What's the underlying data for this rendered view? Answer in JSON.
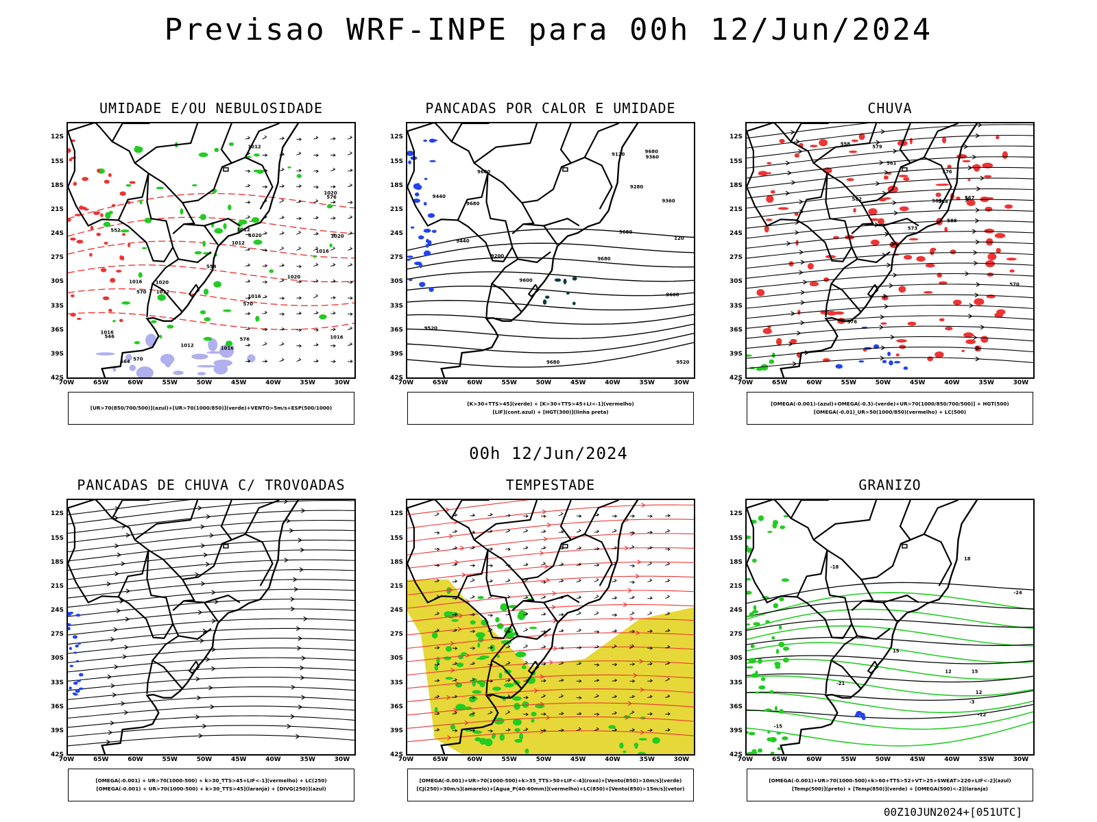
{
  "title": "Previsao WRF-INPE  para 00h 12/Jun/2024",
  "mid_time": "00h 12/Jun/2024",
  "footer": "00Z10JUN2024+[051UTC]",
  "axes": {
    "lat": [
      "12S",
      "15S",
      "18S",
      "21S",
      "24S",
      "27S",
      "30S",
      "33S",
      "36S",
      "39S",
      "42S"
    ],
    "lon": [
      "70W",
      "65W",
      "60W",
      "55W",
      "50W",
      "45W",
      "40W",
      "35W",
      "30W"
    ]
  },
  "colors": {
    "green": "#22cc22",
    "red": "#ee3333",
    "blue": "#2244ee",
    "lavender": "#b0b0ee",
    "yellow": "#e6d838",
    "darkteal": "#0b3b3b"
  },
  "panels": [
    {
      "id": "umidade",
      "title": "UMIDADE E/OU NEBULOSIDADE",
      "legend": [
        "[UR>70(850/700/500)](azul)+[UR>70(1000/850)](verde)+VENTO>5m/s+ESP(500/1000)"
      ],
      "contour_labels": [
        "1016",
        "1016",
        "1016",
        "1020",
        "1020",
        "1020",
        "1012",
        "1012",
        "1012",
        "1016",
        "1012",
        "1020",
        "1020",
        "1012",
        "1016",
        "1016",
        "570",
        "570",
        "570",
        "576",
        "576",
        "564",
        "552",
        "558",
        "546"
      ]
    },
    {
      "id": "pancadas-calor",
      "title": "PANCADAS POR CALOR E UMIDADE",
      "legend": [
        "[K>30+TTS>45](verde) + [K>30+TTS>45+LI<-1](vermelho)",
        "[LIF](cont.azul) + [HGT(300)](linha preta)"
      ],
      "contour_labels": [
        "9680",
        "9680",
        "9680",
        "9680",
        "9680",
        "9600",
        "9600",
        "9520",
        "9440",
        "9440",
        "9360",
        "9280",
        "9200",
        "9120",
        "9520",
        "9600",
        "9360",
        "120"
      ]
    },
    {
      "id": "chuva",
      "title": "CHUVA",
      "legend": [
        "[OMEGA(-0.001)-(azul)+OMEGA(-0.3)-(verde)+UR>70(1000/850/700/500)] + HGT(500)",
        "[OMEGA(-0.01)_UR>50(1000/850)(vermelho) + LC(500)"
      ],
      "contour_labels": [
        "588",
        "585",
        "579",
        "576",
        "573",
        "570",
        "567",
        "564",
        "561",
        "558",
        "582",
        "576"
      ]
    },
    {
      "id": "pancadas-trovoadas",
      "title": "PANCADAS DE CHUVA C/ TROVOADAS",
      "legend": [
        "[OMEGA(-0.001) + UR>70(1000-500) + k>30_TTS>45+LIF<-1](vermelho) + LC(250)",
        "[OMEGA(-0.001) + UR>70(1000-500) + k>30_TTS>45](laranja) + [DIVG(250)](azul)"
      ],
      "contour_labels": []
    },
    {
      "id": "tempestade",
      "title": "TEMPESTADE",
      "legend": [
        "[OMEGA(-0.001)+UR>70(1000-500)+k>35_TTS>50+LIF<-4](roxo)+[Vento(850)>10m/s](verde)",
        "[CJ(250)>30m/s](amarelo)+[Agua_P(40-60mm)](vermelho)+LC(850)+[Vento(850)>15m/s](vetor)"
      ],
      "contour_labels": []
    },
    {
      "id": "granizo",
      "title": "GRANIZO",
      "legend": [
        "[OMEGA(-0.001)+UR>70(1000-500)+k>60+TTS>52+VT>25+SWEAT>220+LIF<-2](azul)",
        "[Temp(500)](preto) + [Temp(850)](verde) + [OMEGA(500)<-2](laranja)"
      ],
      "contour_labels": [
        "-12",
        "-15",
        "-18",
        "-21",
        "-24",
        "12",
        "15",
        "18",
        "15",
        "12",
        "-3"
      ]
    }
  ]
}
